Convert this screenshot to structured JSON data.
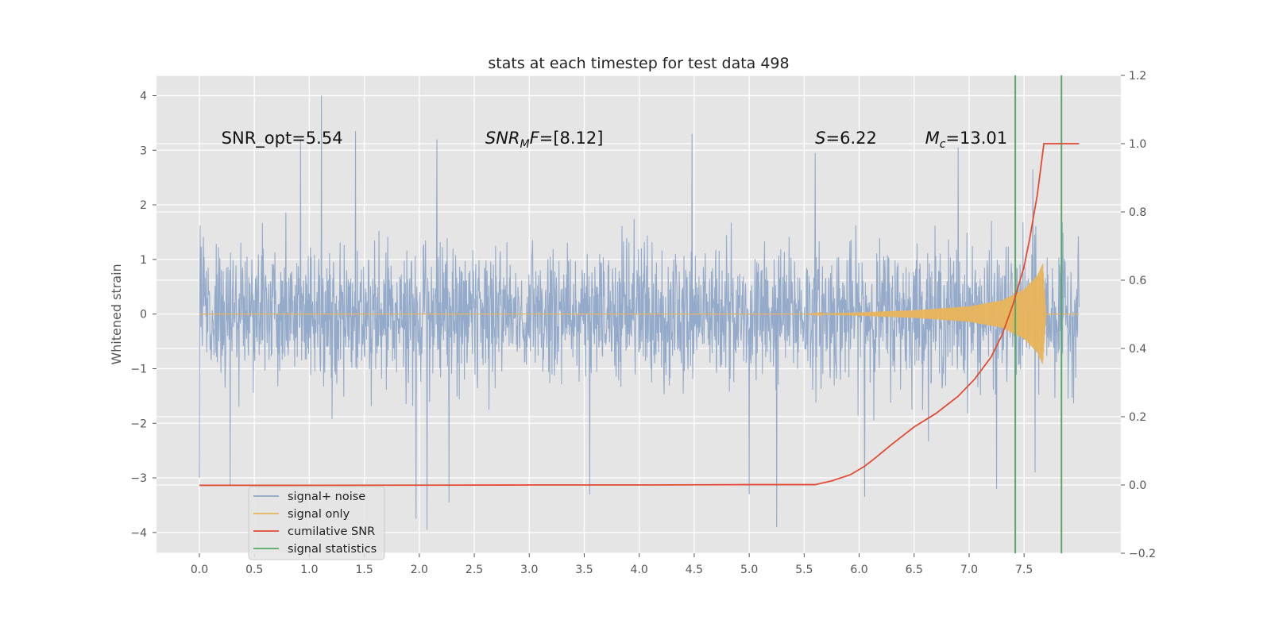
{
  "chart_data": {
    "type": "line",
    "title": "stats at each timestep for test data 498",
    "ylabel": "Whitened strain",
    "xlabel": "",
    "x_range": [
      -0.39,
      8.38
    ],
    "y_range": [
      -4.38,
      4.37
    ],
    "y2_range": [
      -0.2,
      1.2
    ],
    "x_ticks": [
      "0.0",
      "0.5",
      "1.0",
      "1.5",
      "2.0",
      "2.5",
      "3.0",
      "3.5",
      "4.0",
      "4.5",
      "5.0",
      "5.5",
      "6.0",
      "6.5",
      "7.0",
      "7.5"
    ],
    "x_tick_values": [
      0,
      0.5,
      1,
      1.5,
      2,
      2.5,
      3,
      3.5,
      4,
      4.5,
      5,
      5.5,
      6,
      6.5,
      7,
      7.5
    ],
    "y_ticks": [
      "4",
      "3",
      "2",
      "1",
      "0",
      "−1",
      "−2",
      "−3",
      "−4"
    ],
    "y_tick_values": [
      4,
      3,
      2,
      1,
      0,
      -1,
      -2,
      -3,
      -4
    ],
    "y2_ticks": [
      "1.2",
      "1.0",
      "0.8",
      "0.6",
      "0.4",
      "0.2",
      "0.0",
      "−0.2"
    ],
    "y2_tick_values": [
      1.2,
      1.0,
      0.8,
      0.6,
      0.4,
      0.2,
      0.0,
      -0.2
    ],
    "grid": true,
    "legend_position": "lower-left",
    "annotations": [
      {
        "parts": [
          {
            "t": "SNR_opt=5.54",
            "i": false
          }
        ],
        "x": 0.2,
        "y": 3.22
      },
      {
        "parts": [
          {
            "t": "SNR",
            "i": true
          },
          {
            "t": "M",
            "i": true,
            "sub": true
          },
          {
            "t": "F",
            "i": true
          },
          {
            "t": "=[8.12]",
            "i": false
          }
        ],
        "x": 2.6,
        "y": 3.22
      },
      {
        "parts": [
          {
            "t": "S",
            "i": true
          },
          {
            "t": "=6.22",
            "i": false
          }
        ],
        "x": 5.6,
        "y": 3.22
      },
      {
        "parts": [
          {
            "t": "M",
            "i": true
          },
          {
            "t": "c",
            "i": true,
            "sub": true
          },
          {
            "t": "=13.01",
            "i": false
          }
        ],
        "x": 6.6,
        "y": 3.22
      }
    ],
    "series": [
      {
        "name": "signal+ noise",
        "color": "#8fa6c8",
        "description": "whitened strain, approx. Gaussian noise, x from 0.0 to 8.0",
        "x_start": 0.0,
        "x_end": 8.0,
        "envelope_typical": [
          -1.9,
          2.0
        ],
        "spikes": [
          [
            1.11,
            4.0
          ],
          [
            0.92,
            3.2
          ],
          [
            1.42,
            3.35
          ],
          [
            4.48,
            3.3
          ],
          [
            2.16,
            3.2
          ],
          [
            5.6,
            2.95
          ],
          [
            6.9,
            3.05
          ],
          [
            7.58,
            2.65
          ],
          [
            1.97,
            -3.75
          ],
          [
            2.07,
            -3.95
          ],
          [
            2.27,
            -3.45
          ],
          [
            5.25,
            -3.9
          ],
          [
            6.05,
            -3.35
          ],
          [
            7.25,
            -3.2
          ],
          [
            3.55,
            -3.3
          ],
          [
            0.28,
            -3.15
          ],
          [
            5.0,
            -3.3
          ],
          [
            0.0,
            -3.0
          ],
          [
            7.6,
            -2.9
          ]
        ]
      },
      {
        "name": "signal only",
        "color": "#e8b45a",
        "description": "chirp waveform growing in amplitude, merger near x=7.68",
        "points": [
          [
            0.0,
            0.0
          ],
          [
            5.5,
            0.0
          ],
          [
            6.0,
            0.03
          ],
          [
            6.5,
            0.07
          ],
          [
            7.0,
            0.14
          ],
          [
            7.3,
            0.25
          ],
          [
            7.5,
            0.45
          ],
          [
            7.62,
            0.7
          ],
          [
            7.67,
            0.92
          ],
          [
            7.7,
            0.0
          ],
          [
            8.0,
            0.0
          ]
        ]
      },
      {
        "name": "cumilative SNR",
        "color": "#e24a33",
        "axis": "right",
        "points": [
          [
            0.0,
            -0.001
          ],
          [
            1.0,
            -0.0008
          ],
          [
            2.0,
            -0.0005
          ],
          [
            3.0,
            0.0
          ],
          [
            4.0,
            0.0
          ],
          [
            5.0,
            0.001
          ],
          [
            5.6,
            0.001
          ],
          [
            5.75,
            0.012
          ],
          [
            5.92,
            0.03
          ],
          [
            6.05,
            0.055
          ],
          [
            6.15,
            0.08
          ],
          [
            6.3,
            0.12
          ],
          [
            6.5,
            0.17
          ],
          [
            6.7,
            0.21
          ],
          [
            6.9,
            0.26
          ],
          [
            7.05,
            0.31
          ],
          [
            7.2,
            0.375
          ],
          [
            7.3,
            0.44
          ],
          [
            7.4,
            0.53
          ],
          [
            7.5,
            0.64
          ],
          [
            7.55,
            0.72
          ],
          [
            7.62,
            0.85
          ],
          [
            7.66,
            0.95
          ],
          [
            7.68,
            1.0
          ],
          [
            8.0,
            1.0
          ]
        ]
      },
      {
        "name": "signal statistics",
        "color": "#55a868",
        "type": "vlines",
        "x": [
          7.42,
          7.84
        ]
      }
    ]
  },
  "legend": {
    "items": [
      {
        "label": "signal+ noise",
        "color": "#8fa6c8"
      },
      {
        "label": "signal only",
        "color": "#e8b45a"
      },
      {
        "label": "cumilative SNR",
        "color": "#e24a33"
      },
      {
        "label": "signal statistics",
        "color": "#55a868"
      }
    ]
  }
}
